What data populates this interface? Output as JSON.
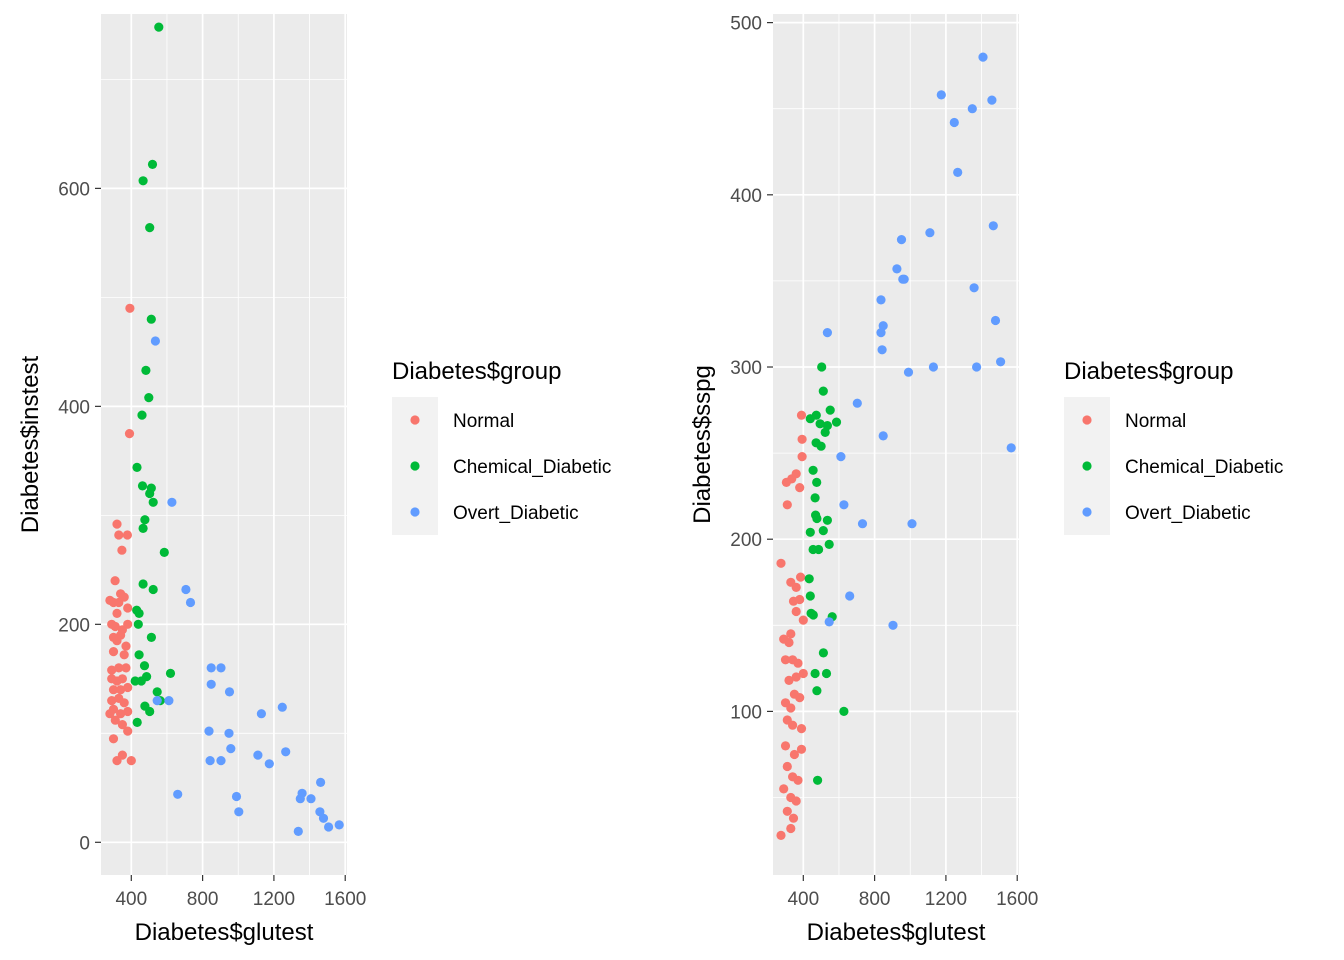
{
  "chart_data": [
    {
      "type": "scatter",
      "xlabel": "Diabetes$glutest",
      "ylabel": "Diabetes$instest",
      "xlim": [
        230,
        1610
      ],
      "ylim": [
        -30,
        760
      ],
      "x_ticks": [
        400,
        800,
        1200,
        1600
      ],
      "y_ticks": [
        0,
        200,
        400,
        600
      ],
      "grid": true,
      "legend": {
        "title": "Diabetes$group",
        "placement": "right",
        "items": [
          {
            "label": "Normal",
            "color": "#F8766D"
          },
          {
            "label": "Chemical_Diabetic",
            "color": "#00BA38"
          },
          {
            "label": "Overt_Diabetic",
            "color": "#619CFF"
          }
        ]
      },
      "series": [
        {
          "name": "Normal",
          "color": "#F8766D",
          "points": [
            [
              392,
              490
            ],
            [
              390,
              375
            ],
            [
              320,
              292
            ],
            [
              330,
              282
            ],
            [
              378,
              282
            ],
            [
              347,
              268
            ],
            [
              309,
              240
            ],
            [
              280,
              222
            ],
            [
              300,
              220
            ],
            [
              330,
              220
            ],
            [
              340,
              228
            ],
            [
              360,
              225
            ],
            [
              320,
              210
            ],
            [
              380,
              215
            ],
            [
              290,
              200
            ],
            [
              310,
              198
            ],
            [
              350,
              195
            ],
            [
              380,
              200
            ],
            [
              300,
              188
            ],
            [
              320,
              185
            ],
            [
              340,
              190
            ],
            [
              370,
              180
            ],
            [
              300,
              175
            ],
            [
              360,
              172
            ],
            [
              290,
              158
            ],
            [
              330,
              160
            ],
            [
              370,
              160
            ],
            [
              290,
              150
            ],
            [
              320,
              148
            ],
            [
              350,
              150
            ],
            [
              300,
              140
            ],
            [
              340,
              140
            ],
            [
              380,
              142
            ],
            [
              290,
              130
            ],
            [
              330,
              132
            ],
            [
              360,
              128
            ],
            [
              300,
              122
            ],
            [
              340,
              118
            ],
            [
              380,
              120
            ],
            [
              280,
              118
            ],
            [
              310,
              112
            ],
            [
              350,
              108
            ],
            [
              380,
              102
            ],
            [
              300,
              95
            ],
            [
              320,
              75
            ],
            [
              400,
              75
            ],
            [
              350,
              80
            ]
          ]
        },
        {
          "name": "Chemical_Diabetic",
          "color": "#00BA38",
          "points": [
            [
              554,
              748
            ],
            [
              519,
              622
            ],
            [
              466,
              607
            ],
            [
              503,
              564
            ],
            [
              512,
              480
            ],
            [
              482,
              433
            ],
            [
              498,
              408
            ],
            [
              460,
              392
            ],
            [
              432,
              344
            ],
            [
              463,
              327
            ],
            [
              512,
              325
            ],
            [
              503,
              320
            ],
            [
              523,
              312
            ],
            [
              476,
              296
            ],
            [
              466,
              288
            ],
            [
              585,
              266
            ],
            [
              466,
              237
            ],
            [
              523,
              232
            ],
            [
              430,
              213
            ],
            [
              444,
              210
            ],
            [
              439,
              200
            ],
            [
              513,
              188
            ],
            [
              444,
              172
            ],
            [
              474,
              162
            ],
            [
              422,
              148
            ],
            [
              456,
              148
            ],
            [
              486,
              152
            ],
            [
              545,
              138
            ],
            [
              620,
              155
            ],
            [
              476,
              125
            ],
            [
              503,
              120
            ],
            [
              433,
              110
            ],
            [
              562,
              130
            ]
          ]
        },
        {
          "name": "Overt_Diabetic",
          "color": "#619CFF",
          "points": [
            [
              535,
              460
            ],
            [
              628,
              312
            ],
            [
              706,
              232
            ],
            [
              732,
              220
            ],
            [
              545,
              130
            ],
            [
              611,
              130
            ],
            [
              848,
              160
            ],
            [
              903,
              160
            ],
            [
              848,
              145
            ],
            [
              951,
              138
            ],
            [
              836,
              102
            ],
            [
              842,
              75
            ],
            [
              903,
              75
            ],
            [
              948,
              100
            ],
            [
              958,
              86
            ],
            [
              1110,
              80
            ],
            [
              1130,
              118
            ],
            [
              1174,
              72
            ],
            [
              1247,
              124
            ],
            [
              1266,
              83
            ],
            [
              660,
              44
            ],
            [
              990,
              42
            ],
            [
              1003,
              28
            ],
            [
              1348,
              40
            ],
            [
              1358,
              45
            ],
            [
              1408,
              40
            ],
            [
              1462,
              55
            ],
            [
              1458,
              28
            ],
            [
              1478,
              22
            ],
            [
              1507,
              14
            ],
            [
              1337,
              10
            ],
            [
              1566,
              16
            ]
          ]
        }
      ]
    },
    {
      "type": "scatter",
      "xlabel": "Diabetes$glutest",
      "ylabel": "Diabetes$sspg",
      "xlim": [
        230,
        1610
      ],
      "ylim": [
        5,
        505
      ],
      "x_ticks": [
        400,
        800,
        1200,
        1600
      ],
      "y_ticks": [
        100,
        200,
        300,
        400,
        500
      ],
      "grid": true,
      "legend": {
        "title": "Diabetes$group",
        "placement": "right",
        "items": [
          {
            "label": "Normal",
            "color": "#F8766D"
          },
          {
            "label": "Chemical_Diabetic",
            "color": "#00BA38"
          },
          {
            "label": "Overt_Diabetic",
            "color": "#619CFF"
          }
        ]
      },
      "series": [
        {
          "name": "Normal",
          "color": "#F8766D",
          "points": [
            [
              390,
              272
            ],
            [
              393,
              258
            ],
            [
              393,
              248
            ],
            [
              335,
              235
            ],
            [
              305,
              233
            ],
            [
              310,
              220
            ],
            [
              360,
              238
            ],
            [
              380,
              230
            ],
            [
              275,
              186
            ],
            [
              385,
              178
            ],
            [
              330,
              175
            ],
            [
              360,
              172
            ],
            [
              345,
              164
            ],
            [
              380,
              165
            ],
            [
              360,
              158
            ],
            [
              400,
              153
            ],
            [
              290,
              142
            ],
            [
              320,
              140
            ],
            [
              330,
              145
            ],
            [
              300,
              130
            ],
            [
              340,
              130
            ],
            [
              370,
              128
            ],
            [
              320,
              118
            ],
            [
              360,
              120
            ],
            [
              400,
              122
            ],
            [
              300,
              105
            ],
            [
              330,
              102
            ],
            [
              350,
              110
            ],
            [
              380,
              108
            ],
            [
              310,
              95
            ],
            [
              340,
              92
            ],
            [
              390,
              90
            ],
            [
              300,
              80
            ],
            [
              350,
              75
            ],
            [
              390,
              78
            ],
            [
              310,
              68
            ],
            [
              340,
              62
            ],
            [
              370,
              60
            ],
            [
              290,
              55
            ],
            [
              330,
              50
            ],
            [
              360,
              48
            ],
            [
              310,
              42
            ],
            [
              345,
              38
            ],
            [
              330,
              32
            ],
            [
              275,
              28
            ]
          ]
        },
        {
          "name": "Chemical_Diabetic",
          "color": "#00BA38",
          "points": [
            [
              503,
              300
            ],
            [
              512,
              286
            ],
            [
              551,
              275
            ],
            [
              473,
              272
            ],
            [
              439,
              270
            ],
            [
              494,
              267
            ],
            [
              586,
              268
            ],
            [
              535,
              266
            ],
            [
              523,
              262
            ],
            [
              472,
              256
            ],
            [
              500,
              254
            ],
            [
              455,
              240
            ],
            [
              475,
              233
            ],
            [
              466,
              224
            ],
            [
              469,
              214
            ],
            [
              476,
              212
            ],
            [
              535,
              211
            ],
            [
              512,
              205
            ],
            [
              439,
              204
            ],
            [
              455,
              194
            ],
            [
              545,
              197
            ],
            [
              486,
              194
            ],
            [
              433,
              177
            ],
            [
              444,
              157
            ],
            [
              439,
              167
            ],
            [
              456,
              156
            ],
            [
              562,
              155
            ],
            [
              513,
              134
            ],
            [
              530,
              122
            ],
            [
              466,
              122
            ],
            [
              476,
              112
            ],
            [
              628,
              100
            ],
            [
              480,
              60
            ]
          ]
        },
        {
          "name": "Overt_Diabetic",
          "color": "#619CFF",
          "points": [
            [
              1408,
              480
            ],
            [
              1174,
              458
            ],
            [
              1458,
              455
            ],
            [
              1348,
              450
            ],
            [
              1247,
              442
            ],
            [
              1266,
              413
            ],
            [
              1466,
              382
            ],
            [
              1110,
              378
            ],
            [
              951,
              374
            ],
            [
              925,
              357
            ],
            [
              958,
              351
            ],
            [
              966,
              351
            ],
            [
              836,
              339
            ],
            [
              1358,
              346
            ],
            [
              848,
              324
            ],
            [
              1478,
              327
            ],
            [
              836,
              320
            ],
            [
              535,
              320
            ],
            [
              842,
              310
            ],
            [
              1507,
              303
            ],
            [
              1130,
              300
            ],
            [
              1372,
              300
            ],
            [
              990,
              297
            ],
            [
              703,
              279
            ],
            [
              848,
              260
            ],
            [
              1566,
              253
            ],
            [
              611,
              248
            ],
            [
              628,
              220
            ],
            [
              732,
              209
            ],
            [
              1010,
              209
            ],
            [
              660,
              167
            ],
            [
              545,
              152
            ],
            [
              903,
              150
            ]
          ]
        }
      ]
    }
  ]
}
